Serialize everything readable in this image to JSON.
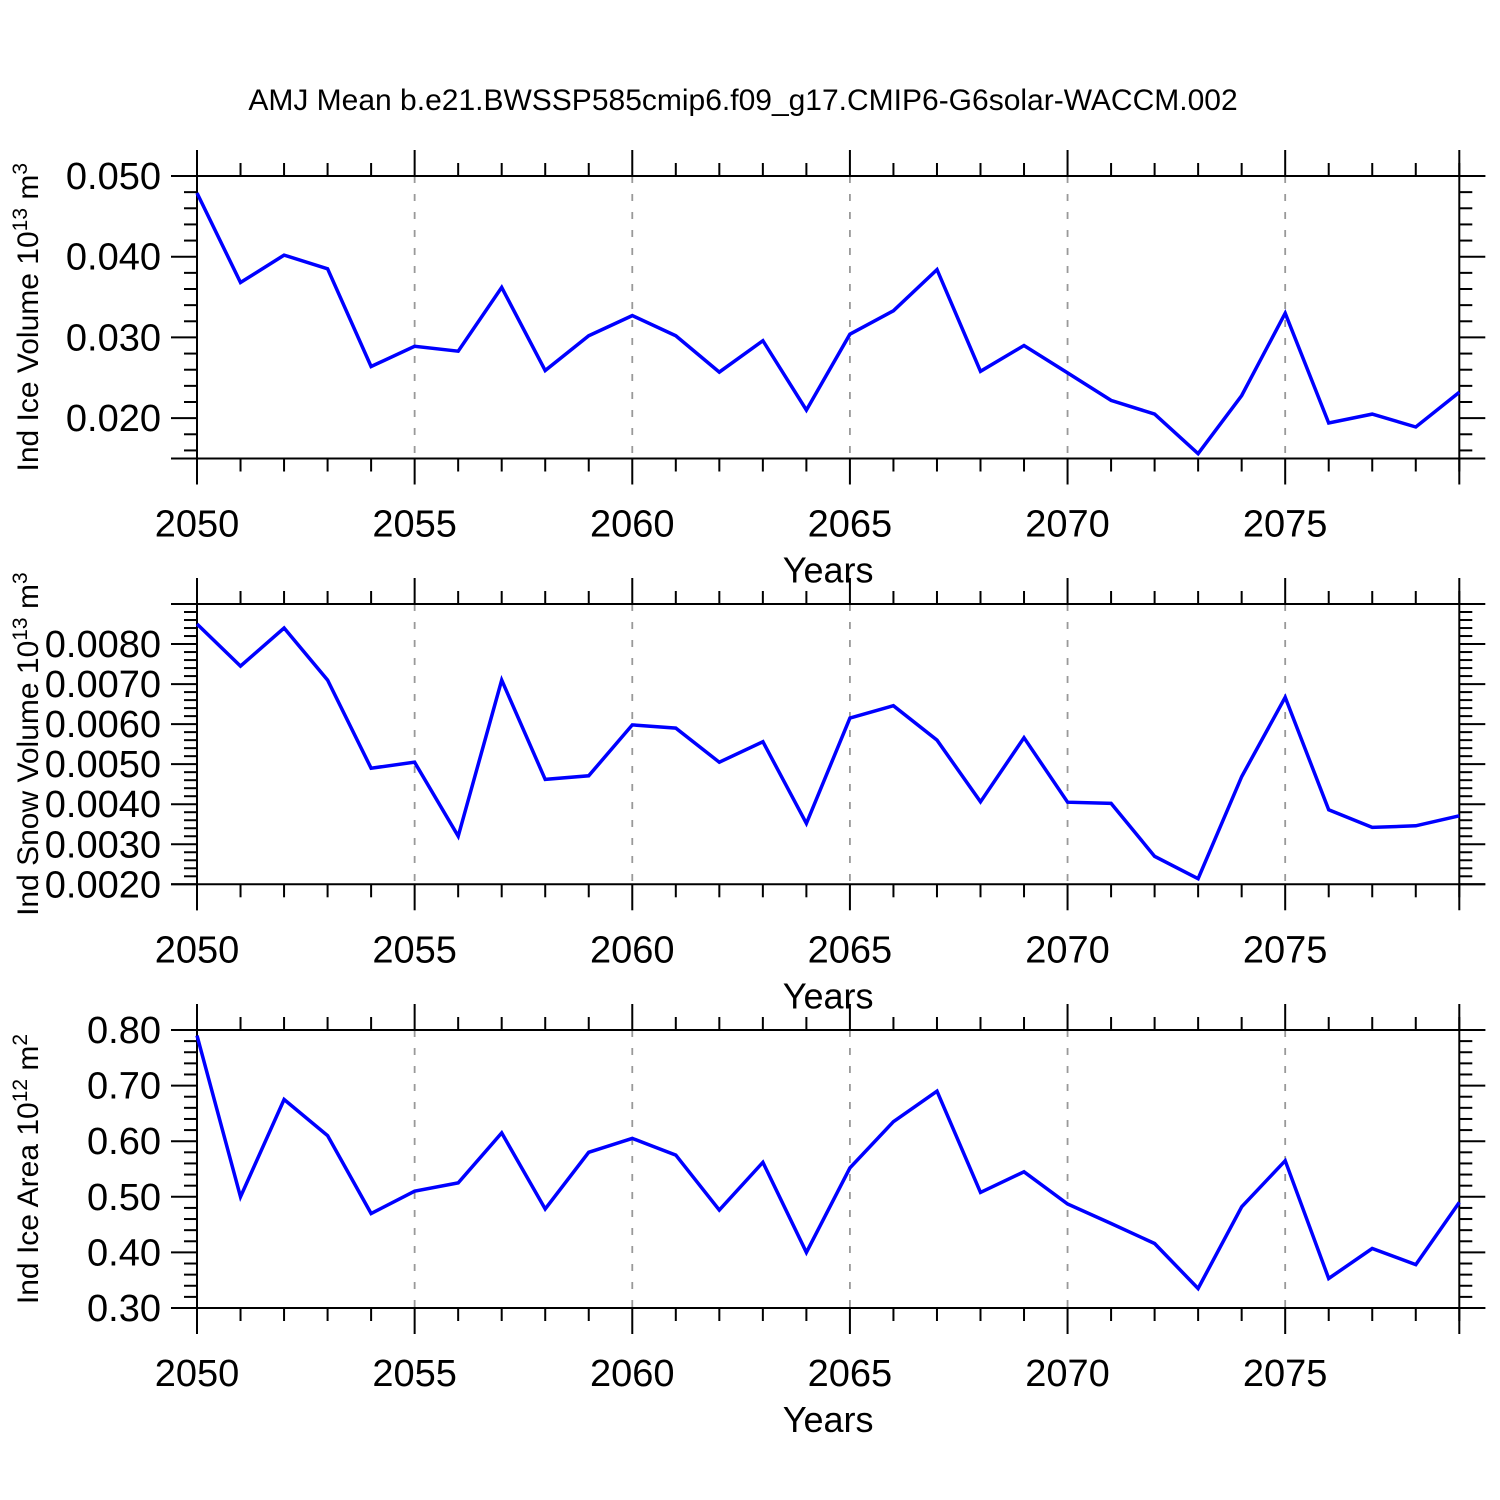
{
  "title": "AMJ Mean b.e21.BWSSP585cmip6.f09_g17.CMIP6-G6solar-WACCM.002",
  "style": {
    "line_color": "#0000ff",
    "axis_color": "#000000",
    "grid_color": "#999999",
    "background": "#ffffff"
  },
  "chart_data": [
    {
      "type": "line",
      "name": "ind-ice-volume",
      "ylabel": "Ind Ice Volume 10^13 m^3",
      "ylabel_parts": [
        {
          "text": "Ind Ice Volume 10",
          "sup": false
        },
        {
          "text": "13",
          "sup": true
        },
        {
          "text": " m",
          "sup": false
        },
        {
          "text": "3",
          "sup": true
        }
      ],
      "xlabel": "Years",
      "xlim": [
        2050,
        2079
      ],
      "ylim": [
        0.015,
        0.05
      ],
      "x": [
        2050,
        2051,
        2052,
        2053,
        2054,
        2055,
        2056,
        2057,
        2058,
        2059,
        2060,
        2061,
        2062,
        2063,
        2064,
        2065,
        2066,
        2067,
        2068,
        2069,
        2070,
        2071,
        2072,
        2073,
        2074,
        2075,
        2076,
        2077,
        2078,
        2079
      ],
      "values": [
        0.0479,
        0.0368,
        0.0402,
        0.0385,
        0.0264,
        0.0289,
        0.0283,
        0.0362,
        0.0259,
        0.0302,
        0.0327,
        0.0302,
        0.0257,
        0.0296,
        0.021,
        0.0304,
        0.0333,
        0.0384,
        0.0258,
        0.029,
        0.0256,
        0.0222,
        0.0205,
        0.0156,
        0.0228,
        0.033,
        0.0194,
        0.0205,
        0.0189,
        0.0232
      ],
      "yticks": [
        0.02,
        0.03,
        0.04,
        0.05
      ],
      "ytick_labels": [
        "0.020",
        "0.030",
        "0.040",
        "0.050"
      ],
      "y_minor_step": 0.002,
      "xticks": [
        2050,
        2055,
        2060,
        2065,
        2070,
        2075
      ],
      "x_tick_labels": [
        "2050",
        "2055",
        "2060",
        "2065",
        "2070",
        "2075"
      ],
      "x_minor_step": 1,
      "grid_years": [
        2055,
        2060,
        2065,
        2070,
        2075
      ],
      "grid": "vertical-dashed",
      "legend": "none"
    },
    {
      "type": "line",
      "name": "ind-snow-volume",
      "ylabel": "Ind Snow Volume 10^13 m^3",
      "ylabel_parts": [
        {
          "text": "Ind Snow Volume 10",
          "sup": false
        },
        {
          "text": "13",
          "sup": true
        },
        {
          "text": " m",
          "sup": false
        },
        {
          "text": "3",
          "sup": true
        }
      ],
      "xlabel": "Years",
      "xlim": [
        2050,
        2079
      ],
      "ylim": [
        0.002,
        0.009
      ],
      "x": [
        2050,
        2051,
        2052,
        2053,
        2054,
        2055,
        2056,
        2057,
        2058,
        2059,
        2060,
        2061,
        2062,
        2063,
        2064,
        2065,
        2066,
        2067,
        2068,
        2069,
        2070,
        2071,
        2072,
        2073,
        2074,
        2075,
        2076,
        2077,
        2078,
        2079
      ],
      "values": [
        0.0085,
        0.00745,
        0.0084,
        0.0071,
        0.0049,
        0.00505,
        0.0032,
        0.0071,
        0.00462,
        0.00471,
        0.00598,
        0.0059,
        0.00505,
        0.00556,
        0.00352,
        0.00615,
        0.00646,
        0.0056,
        0.00406,
        0.00566,
        0.00405,
        0.00402,
        0.0027,
        0.00214,
        0.00469,
        0.00667,
        0.00386,
        0.00342,
        0.00346,
        0.00371
      ],
      "yticks": [
        0.002,
        0.003,
        0.004,
        0.005,
        0.006,
        0.007,
        0.008
      ],
      "ytick_labels": [
        "0.0020",
        "0.0030",
        "0.0040",
        "0.0050",
        "0.0060",
        "0.0070",
        "0.0080"
      ],
      "y_minor_step": 0.0002,
      "xticks": [
        2050,
        2055,
        2060,
        2065,
        2070,
        2075
      ],
      "x_tick_labels": [
        "2050",
        "2055",
        "2060",
        "2065",
        "2070",
        "2075"
      ],
      "x_minor_step": 1,
      "grid_years": [
        2055,
        2060,
        2065,
        2070,
        2075
      ],
      "grid": "vertical-dashed",
      "legend": "none"
    },
    {
      "type": "line",
      "name": "ind-ice-area",
      "ylabel": "Ind Ice Area 10^12 m^2",
      "ylabel_parts": [
        {
          "text": "Ind Ice Area 10",
          "sup": false
        },
        {
          "text": "12",
          "sup": true
        },
        {
          "text": " m",
          "sup": false
        },
        {
          "text": "2",
          "sup": true
        }
      ],
      "xlabel": "Years",
      "xlim": [
        2050,
        2079
      ],
      "ylim": [
        0.3,
        0.8
      ],
      "x": [
        2050,
        2051,
        2052,
        2053,
        2054,
        2055,
        2056,
        2057,
        2058,
        2059,
        2060,
        2061,
        2062,
        2063,
        2064,
        2065,
        2066,
        2067,
        2068,
        2069,
        2070,
        2071,
        2072,
        2073,
        2074,
        2075,
        2076,
        2077,
        2078,
        2079
      ],
      "values": [
        0.79,
        0.5,
        0.675,
        0.61,
        0.47,
        0.51,
        0.525,
        0.615,
        0.478,
        0.58,
        0.605,
        0.575,
        0.476,
        0.562,
        0.4,
        0.552,
        0.635,
        0.69,
        0.508,
        0.545,
        0.487,
        0.452,
        0.416,
        0.335,
        0.482,
        0.565,
        0.353,
        0.407,
        0.378,
        0.49
      ],
      "yticks": [
        0.3,
        0.4,
        0.5,
        0.6,
        0.7,
        0.8
      ],
      "ytick_labels": [
        "0.30",
        "0.40",
        "0.50",
        "0.60",
        "0.70",
        "0.80"
      ],
      "y_minor_step": 0.02,
      "xticks": [
        2050,
        2055,
        2060,
        2065,
        2070,
        2075
      ],
      "x_tick_labels": [
        "2050",
        "2055",
        "2060",
        "2065",
        "2070",
        "2075"
      ],
      "x_minor_step": 1,
      "grid_years": [
        2055,
        2060,
        2065,
        2070,
        2075
      ],
      "grid": "vertical-dashed",
      "legend": "none"
    }
  ]
}
